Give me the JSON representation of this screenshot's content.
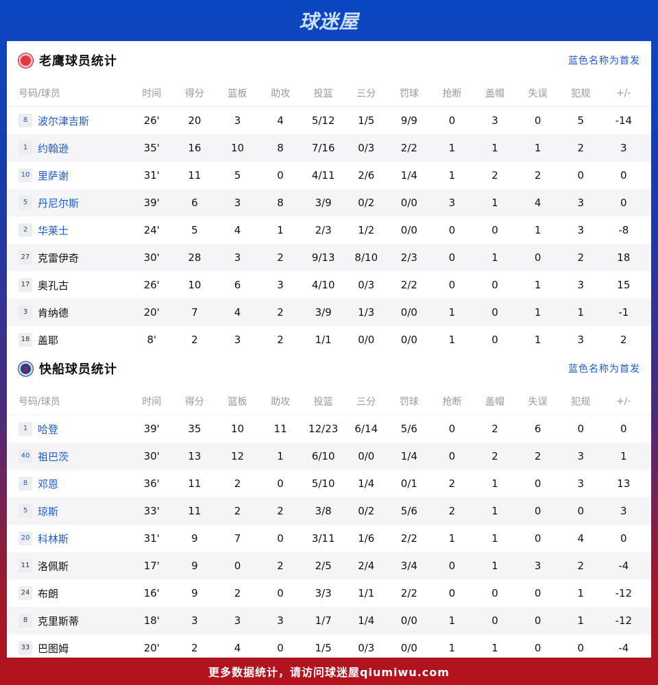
{
  "brand": "球迷屋",
  "footer": "更多数据统计，请访问球迷屋qiumiwu.com",
  "columns": [
    "号码/球员",
    "时间",
    "得分",
    "篮板",
    "助攻",
    "投篮",
    "三分",
    "罚球",
    "抢断",
    "盖帽",
    "失误",
    "犯规",
    "+/-"
  ],
  "teams": [
    {
      "title": "老鹰球员统计",
      "logo": "hawks-logo-icon",
      "note": "蓝色名称为首发",
      "players": [
        {
          "num": "8",
          "name": "波尔津吉斯",
          "starter": true,
          "stats": [
            "26'",
            "20",
            "3",
            "4",
            "5/12",
            "1/5",
            "9/9",
            "0",
            "3",
            "0",
            "5",
            "-14"
          ]
        },
        {
          "num": "1",
          "name": "约翰逊",
          "starter": true,
          "stats": [
            "35'",
            "16",
            "10",
            "8",
            "7/16",
            "0/3",
            "2/2",
            "1",
            "1",
            "1",
            "2",
            "3"
          ]
        },
        {
          "num": "10",
          "name": "里萨谢",
          "starter": true,
          "stats": [
            "31'",
            "11",
            "5",
            "0",
            "4/11",
            "2/6",
            "1/4",
            "1",
            "2",
            "2",
            "0",
            "0"
          ]
        },
        {
          "num": "5",
          "name": "丹尼尔斯",
          "starter": true,
          "stats": [
            "39'",
            "6",
            "3",
            "8",
            "3/9",
            "0/2",
            "0/0",
            "3",
            "1",
            "4",
            "3",
            "0"
          ]
        },
        {
          "num": "2",
          "name": "华莱士",
          "starter": true,
          "stats": [
            "24'",
            "5",
            "4",
            "1",
            "2/3",
            "1/2",
            "0/0",
            "0",
            "0",
            "1",
            "3",
            "-8"
          ]
        },
        {
          "num": "27",
          "name": "克雷伊奇",
          "starter": false,
          "stats": [
            "30'",
            "28",
            "3",
            "2",
            "9/13",
            "8/10",
            "2/3",
            "0",
            "1",
            "0",
            "2",
            "18"
          ]
        },
        {
          "num": "17",
          "name": "奥孔古",
          "starter": false,
          "stats": [
            "26'",
            "10",
            "6",
            "3",
            "4/10",
            "0/3",
            "2/2",
            "0",
            "0",
            "1",
            "3",
            "15"
          ]
        },
        {
          "num": "3",
          "name": "肯纳德",
          "starter": false,
          "stats": [
            "20'",
            "7",
            "4",
            "2",
            "3/9",
            "1/3",
            "0/0",
            "1",
            "0",
            "1",
            "1",
            "-1"
          ]
        },
        {
          "num": "18",
          "name": "盖耶",
          "starter": false,
          "stats": [
            "8'",
            "2",
            "3",
            "2",
            "1/1",
            "0/0",
            "0/0",
            "1",
            "0",
            "1",
            "3",
            "2"
          ]
        }
      ]
    },
    {
      "title": "快船球员统计",
      "logo": "clippers-logo-icon",
      "note": "蓝色名称为首发",
      "players": [
        {
          "num": "1",
          "name": "哈登",
          "starter": true,
          "stats": [
            "39'",
            "35",
            "10",
            "11",
            "12/23",
            "6/14",
            "5/6",
            "0",
            "2",
            "6",
            "0",
            "0"
          ]
        },
        {
          "num": "40",
          "name": "祖巴茨",
          "starter": true,
          "stats": [
            "30'",
            "13",
            "12",
            "1",
            "6/10",
            "0/0",
            "1/4",
            "0",
            "2",
            "2",
            "3",
            "1"
          ]
        },
        {
          "num": "8",
          "name": "邓恩",
          "starter": true,
          "stats": [
            "36'",
            "11",
            "2",
            "0",
            "5/10",
            "1/4",
            "0/1",
            "2",
            "1",
            "0",
            "3",
            "13"
          ]
        },
        {
          "num": "5",
          "name": "琼斯",
          "starter": true,
          "stats": [
            "33'",
            "11",
            "2",
            "2",
            "3/8",
            "0/2",
            "5/6",
            "2",
            "1",
            "0",
            "0",
            "3"
          ]
        },
        {
          "num": "20",
          "name": "科林斯",
          "starter": true,
          "stats": [
            "31'",
            "9",
            "7",
            "0",
            "3/11",
            "1/6",
            "2/2",
            "1",
            "1",
            "0",
            "4",
            "0"
          ]
        },
        {
          "num": "11",
          "name": "洛佩斯",
          "starter": false,
          "stats": [
            "17'",
            "9",
            "0",
            "2",
            "2/5",
            "2/4",
            "3/4",
            "0",
            "1",
            "3",
            "2",
            "-4"
          ]
        },
        {
          "num": "24",
          "name": "布朗",
          "starter": false,
          "stats": [
            "16'",
            "9",
            "2",
            "0",
            "3/3",
            "1/1",
            "2/2",
            "0",
            "0",
            "0",
            "1",
            "-12"
          ]
        },
        {
          "num": "8",
          "name": "克里斯蒂",
          "starter": false,
          "stats": [
            "18'",
            "3",
            "3",
            "3",
            "1/7",
            "1/4",
            "0/0",
            "1",
            "0",
            "0",
            "1",
            "-12"
          ]
        },
        {
          "num": "33",
          "name": "巴图姆",
          "starter": false,
          "stats": [
            "20'",
            "2",
            "4",
            "0",
            "1/5",
            "0/3",
            "0/0",
            "1",
            "1",
            "0",
            "0",
            "-4"
          ]
        }
      ]
    }
  ],
  "colors": {
    "accent": "#1e5ad6",
    "top": "#0a47c2",
    "bottom": "#b5121b"
  }
}
